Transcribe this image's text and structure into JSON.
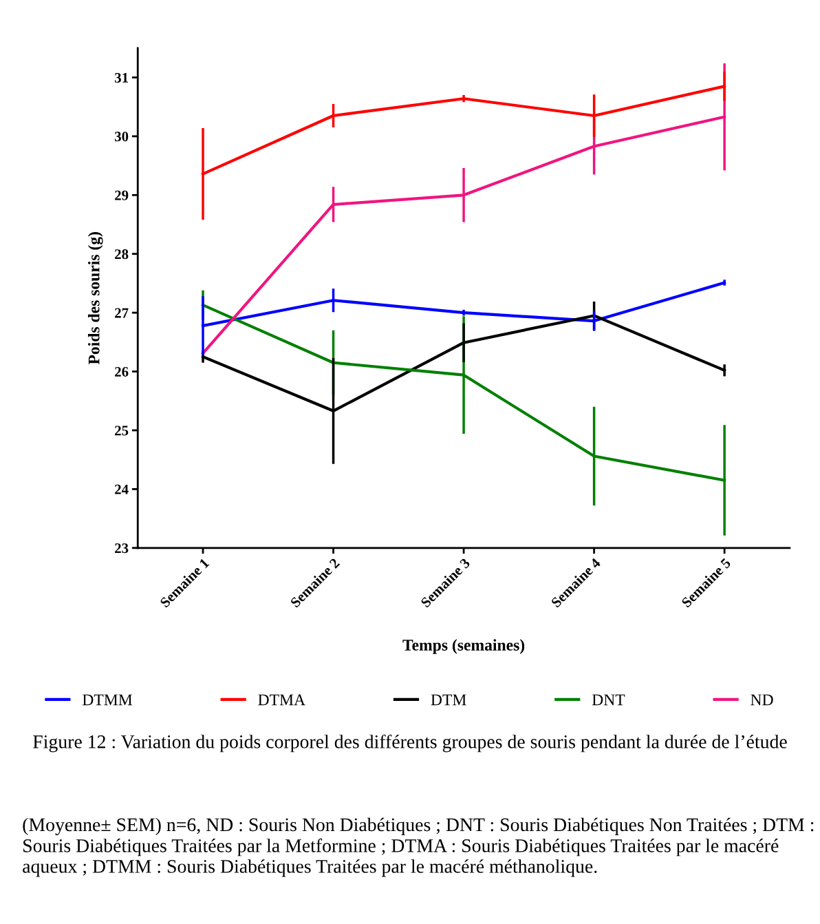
{
  "chart_data": {
    "type": "line",
    "xlabel": "Temps (semaines)",
    "ylabel": "Poids des souris (g)",
    "categories": [
      "Semaine 1",
      "Semaine 2",
      "Semaine 3",
      "Semaine 4",
      "Semaine 5"
    ],
    "ylim": [
      23,
      31.5
    ],
    "yticks": [
      23,
      24,
      25,
      26,
      27,
      28,
      29,
      30,
      31
    ],
    "grid": false,
    "legend": "bottom",
    "marker": "none",
    "line_style": "solid",
    "series": [
      {
        "name": "DTMM",
        "color": "#0000ff",
        "values": [
          26.78,
          27.21,
          27.0,
          26.86,
          27.51
        ],
        "errors": [
          0.5,
          0.2,
          0.05,
          0.17,
          0.05
        ]
      },
      {
        "name": "DTMA",
        "color": "#ff0000",
        "values": [
          29.36,
          30.35,
          30.64,
          30.35,
          30.85
        ],
        "errors": [
          0.78,
          0.2,
          0.06,
          0.36,
          0.25
        ]
      },
      {
        "name": "DTM",
        "color": "#000000",
        "values": [
          26.25,
          25.33,
          26.49,
          26.95,
          26.02
        ],
        "errors": [
          0.1,
          0.9,
          0.33,
          0.24,
          0.1
        ]
      },
      {
        "name": "DNT",
        "color": "#008000",
        "values": [
          27.13,
          26.15,
          25.94,
          24.56,
          24.15
        ],
        "errors": [
          0.25,
          0.55,
          1.0,
          0.84,
          0.94
        ]
      },
      {
        "name": "ND",
        "color": "#f0157f",
        "values": [
          26.31,
          28.84,
          29.0,
          29.83,
          30.33
        ],
        "errors": [
          null,
          0.3,
          0.46,
          0.48,
          0.91
        ]
      }
    ],
    "annotations": [
      "Figure 12 : Variation du poids corporel des différents groupes de souris pendant la durée de l’étude",
      "(Moyenne± SEM) n=6, ND : Souris Non Diabétiques ; DNT : Souris Diabétiques Non Traitées ; DTM : Souris Diabétiques Traitées par la Metformine ; DTMA : Souris Diabétiques Traitées par le macéré aqueux ; DTMM : Souris Diabétiques Traitées par le macéré méthanolique."
    ]
  }
}
